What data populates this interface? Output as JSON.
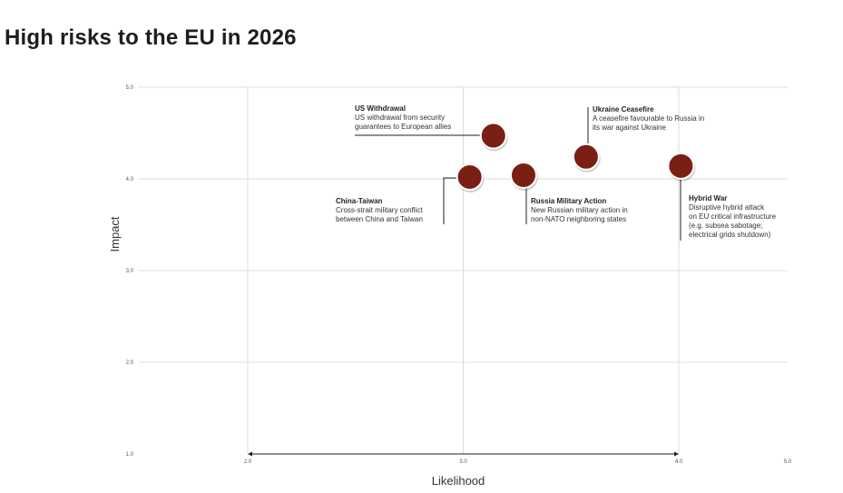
{
  "page": {
    "title": "High risks to the EU in 2026"
  },
  "chart_data": {
    "type": "scatter",
    "title": "High risks to the EU in 2026",
    "xlabel": "Likelihood",
    "ylabel": "Impact",
    "xlim": [
      2.0,
      5.0
    ],
    "ylim": [
      1.0,
      5.0
    ],
    "x_ticks": [
      "2.0",
      "3.0",
      "4.0",
      "5.0"
    ],
    "y_ticks": [
      "1.0",
      "2.0",
      "3.0",
      "4.0",
      "5.0"
    ],
    "grid": true,
    "marker_color": "#7a1f14",
    "points": [
      {
        "name": "US Withdrawal",
        "x": 3.14,
        "y": 4.47,
        "description": [
          "US withdrawal from security",
          "guarantees to European allies"
        ]
      },
      {
        "name": "China-Taiwan",
        "x": 3.03,
        "y": 4.02,
        "description": [
          "Cross-strait military conflict",
          "between China and Taiwan"
        ]
      },
      {
        "name": "Russia Military Action",
        "x": 3.28,
        "y": 4.04,
        "description": [
          "New Russian military action in",
          "non-NATO neighboring states"
        ]
      },
      {
        "name": "Ukraine Ceasefire",
        "x": 3.57,
        "y": 4.24,
        "description": [
          "A ceasefire favourable to Russia in",
          "its war against Ukraine"
        ]
      },
      {
        "name": "Hybrid War",
        "x": 4.01,
        "y": 4.14,
        "description": [
          "Disruptive hybrid attack",
          "on EU critical infrastructure",
          "(e.g. subsea sabotage;",
          "electrical grids shutdown)"
        ]
      }
    ]
  }
}
